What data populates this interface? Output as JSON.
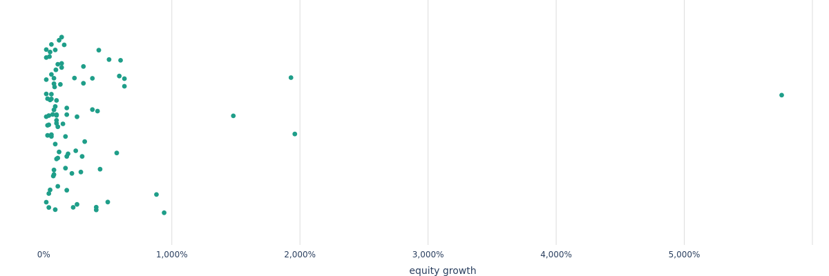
{
  "chart_data": {
    "type": "scatter",
    "title": "",
    "xlabel": "equity growth",
    "ylabel": "",
    "x_axis_format": "percent",
    "xlim": [
      -50,
      6000
    ],
    "x_ticks": [
      0,
      1000,
      2000,
      3000,
      4000,
      5000
    ],
    "x_tick_labels": [
      "0%",
      "1,000%",
      "2,000%",
      "3,000%",
      "4,000%",
      "5,000%"
    ],
    "y_axis_visible": false,
    "grid": {
      "x": true,
      "y": false
    },
    "marker_color": "#1f9e89",
    "series": [
      {
        "name": "",
        "values": [
          150,
          170,
          45,
          20,
          100,
          110,
          90,
          40,
          320,
          380,
          85,
          75,
          190,
          20,
          30,
          240,
          300,
          110,
          60,
          100,
          140,
          160,
          260,
          410,
          20,
          40,
          230,
          95,
          420,
          60,
          180,
          630,
          310,
          940,
          1480,
          1930,
          1960,
          5760,
          140,
          80,
          60,
          30,
          430,
          500,
          630,
          880,
          100,
          80,
          90,
          180,
          290,
          570,
          600,
          590,
          20,
          50,
          60,
          80,
          110,
          120,
          410,
          60,
          70,
          40,
          180,
          110,
          260,
          100,
          310,
          380,
          440,
          510,
          130,
          220,
          50,
          90,
          20,
          180,
          80,
          250,
          30,
          120,
          20,
          50,
          60,
          90,
          100,
          170,
          80,
          40,
          140,
          100
        ]
      }
    ]
  }
}
